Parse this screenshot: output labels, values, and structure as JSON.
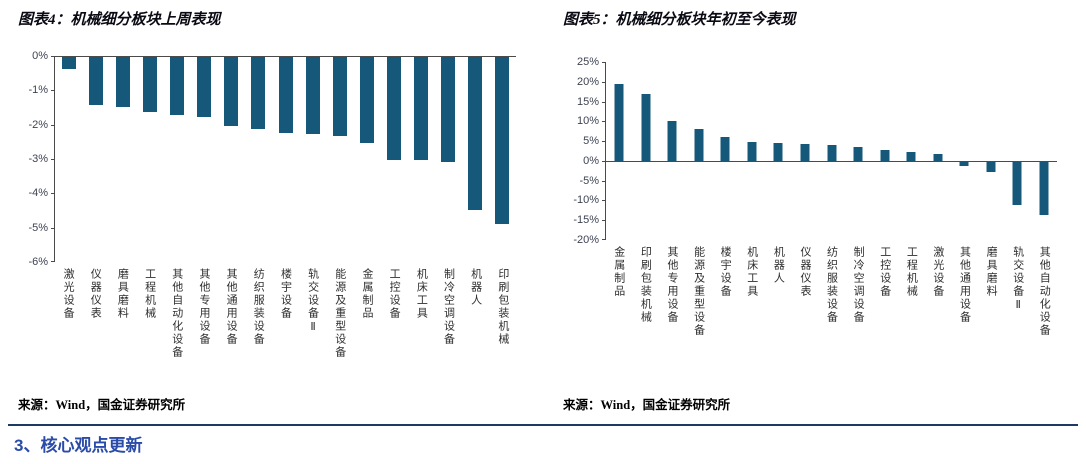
{
  "section_heading": "3、核心观点更新",
  "colors": {
    "bar": "#15587A",
    "divider": "#1F3864",
    "heading": "#2A4BA8",
    "axis": "#4a4a4a"
  },
  "chart_data": [
    {
      "type": "bar",
      "title": "图表4：机械细分板块上周表现",
      "source": "来源：Wind，国金证券研究所",
      "categories": [
        "激光设备",
        "仪器仪表",
        "磨具磨料",
        "工程机械",
        "其他自动化设备",
        "其他专用设备",
        "其他通用设备",
        "纺织服装设备",
        "楼宇设备",
        "轨交设备Ⅱ",
        "能源及重型设备",
        "金属制品",
        "工控设备",
        "机床工具",
        "制冷空调设备",
        "机器人",
        "印刷包装机械"
      ],
      "values": [
        -0.35,
        -1.4,
        -1.45,
        -1.6,
        -1.7,
        -1.75,
        -2.0,
        -2.1,
        -2.2,
        -2.25,
        -2.3,
        -2.5,
        -3.0,
        -3.0,
        -3.05,
        -4.45,
        -4.85
      ],
      "unit": "%",
      "xlabel": "",
      "ylabel": "",
      "ylim": [
        -6,
        0
      ],
      "yticks": {
        "values": [
          0,
          -1,
          -2,
          -3,
          -4,
          -5,
          -6
        ],
        "labels": [
          "0%",
          "-1%",
          "-2%",
          "-3%",
          "-4%",
          "-5%",
          "-6%"
        ]
      },
      "bar_color": "#15587A",
      "grid": false,
      "legend": "none"
    },
    {
      "type": "bar",
      "title": "图表5：机械细分板块年初至今表现",
      "source": "来源：Wind，国金证券研究所",
      "categories": [
        "金属制品",
        "印刷包装机械",
        "其他专用设备",
        "能源及重型设备",
        "楼宇设备",
        "机床工具",
        "机器人",
        "仪器仪表",
        "纺织服装设备",
        "制冷空调设备",
        "工控设备",
        "工程机械",
        "激光设备",
        "其他通用设备",
        "磨具磨料",
        "轨交设备Ⅱ",
        "其他自动化设备"
      ],
      "values": [
        19.5,
        17,
        10,
        8,
        6,
        4.7,
        4.4,
        4.2,
        3.9,
        3.5,
        2.8,
        2.3,
        1.8,
        -1.0,
        -2.5,
        -11,
        -13.5
      ],
      "unit": "%",
      "xlabel": "",
      "ylabel": "",
      "ylim": [
        -20,
        25
      ],
      "yticks": {
        "values": [
          25,
          20,
          15,
          10,
          5,
          0,
          -5,
          -10,
          -15,
          -20
        ],
        "labels": [
          "25%",
          "20%",
          "15%",
          "10%",
          "5%",
          "0%",
          "-5%",
          "-10%",
          "-15%",
          "-20%"
        ]
      },
      "bar_color": "#15587A",
      "grid": false,
      "legend": "none"
    }
  ]
}
